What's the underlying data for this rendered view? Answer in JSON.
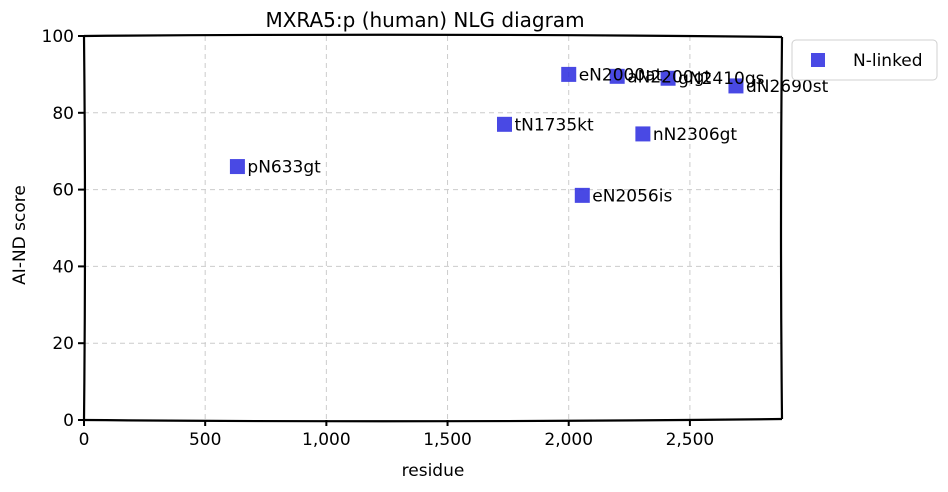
{
  "chart_data": {
    "type": "scatter",
    "title": "MXRA5:p (human) NLG diagram",
    "xlabel": "residue",
    "ylabel": "AI-ND score",
    "xlim": [
      0,
      2880
    ],
    "ylim": [
      0,
      100
    ],
    "xticks": [
      0,
      500,
      1000,
      1500,
      2000,
      2500
    ],
    "xtick_labels": [
      "0",
      "500",
      "1,000",
      "1,500",
      "2,000",
      "2,500"
    ],
    "yticks": [
      0,
      20,
      40,
      60,
      80,
      100
    ],
    "ytick_labels": [
      "0",
      "20",
      "40",
      "60",
      "80",
      "100"
    ],
    "grid": true,
    "legend_position": "outside top-right",
    "series": [
      {
        "name": "N-linked",
        "color": "#2a2ae0",
        "marker": "square",
        "points": [
          {
            "x": 633,
            "y": 66,
            "label": "pN633gt"
          },
          {
            "x": 1735,
            "y": 77,
            "label": "tN1735kt"
          },
          {
            "x": 2000,
            "y": 90,
            "label": "eN2000at"
          },
          {
            "x": 2056,
            "y": 58.5,
            "label": "eN2056is"
          },
          {
            "x": 2200,
            "y": 89.5,
            "label": "aN2200gt"
          },
          {
            "x": 2306,
            "y": 74.5,
            "label": "nN2306gt"
          },
          {
            "x": 2410,
            "y": 89,
            "label": "gN2410gs"
          },
          {
            "x": 2690,
            "y": 87,
            "label": "dN2690st"
          }
        ]
      }
    ]
  }
}
